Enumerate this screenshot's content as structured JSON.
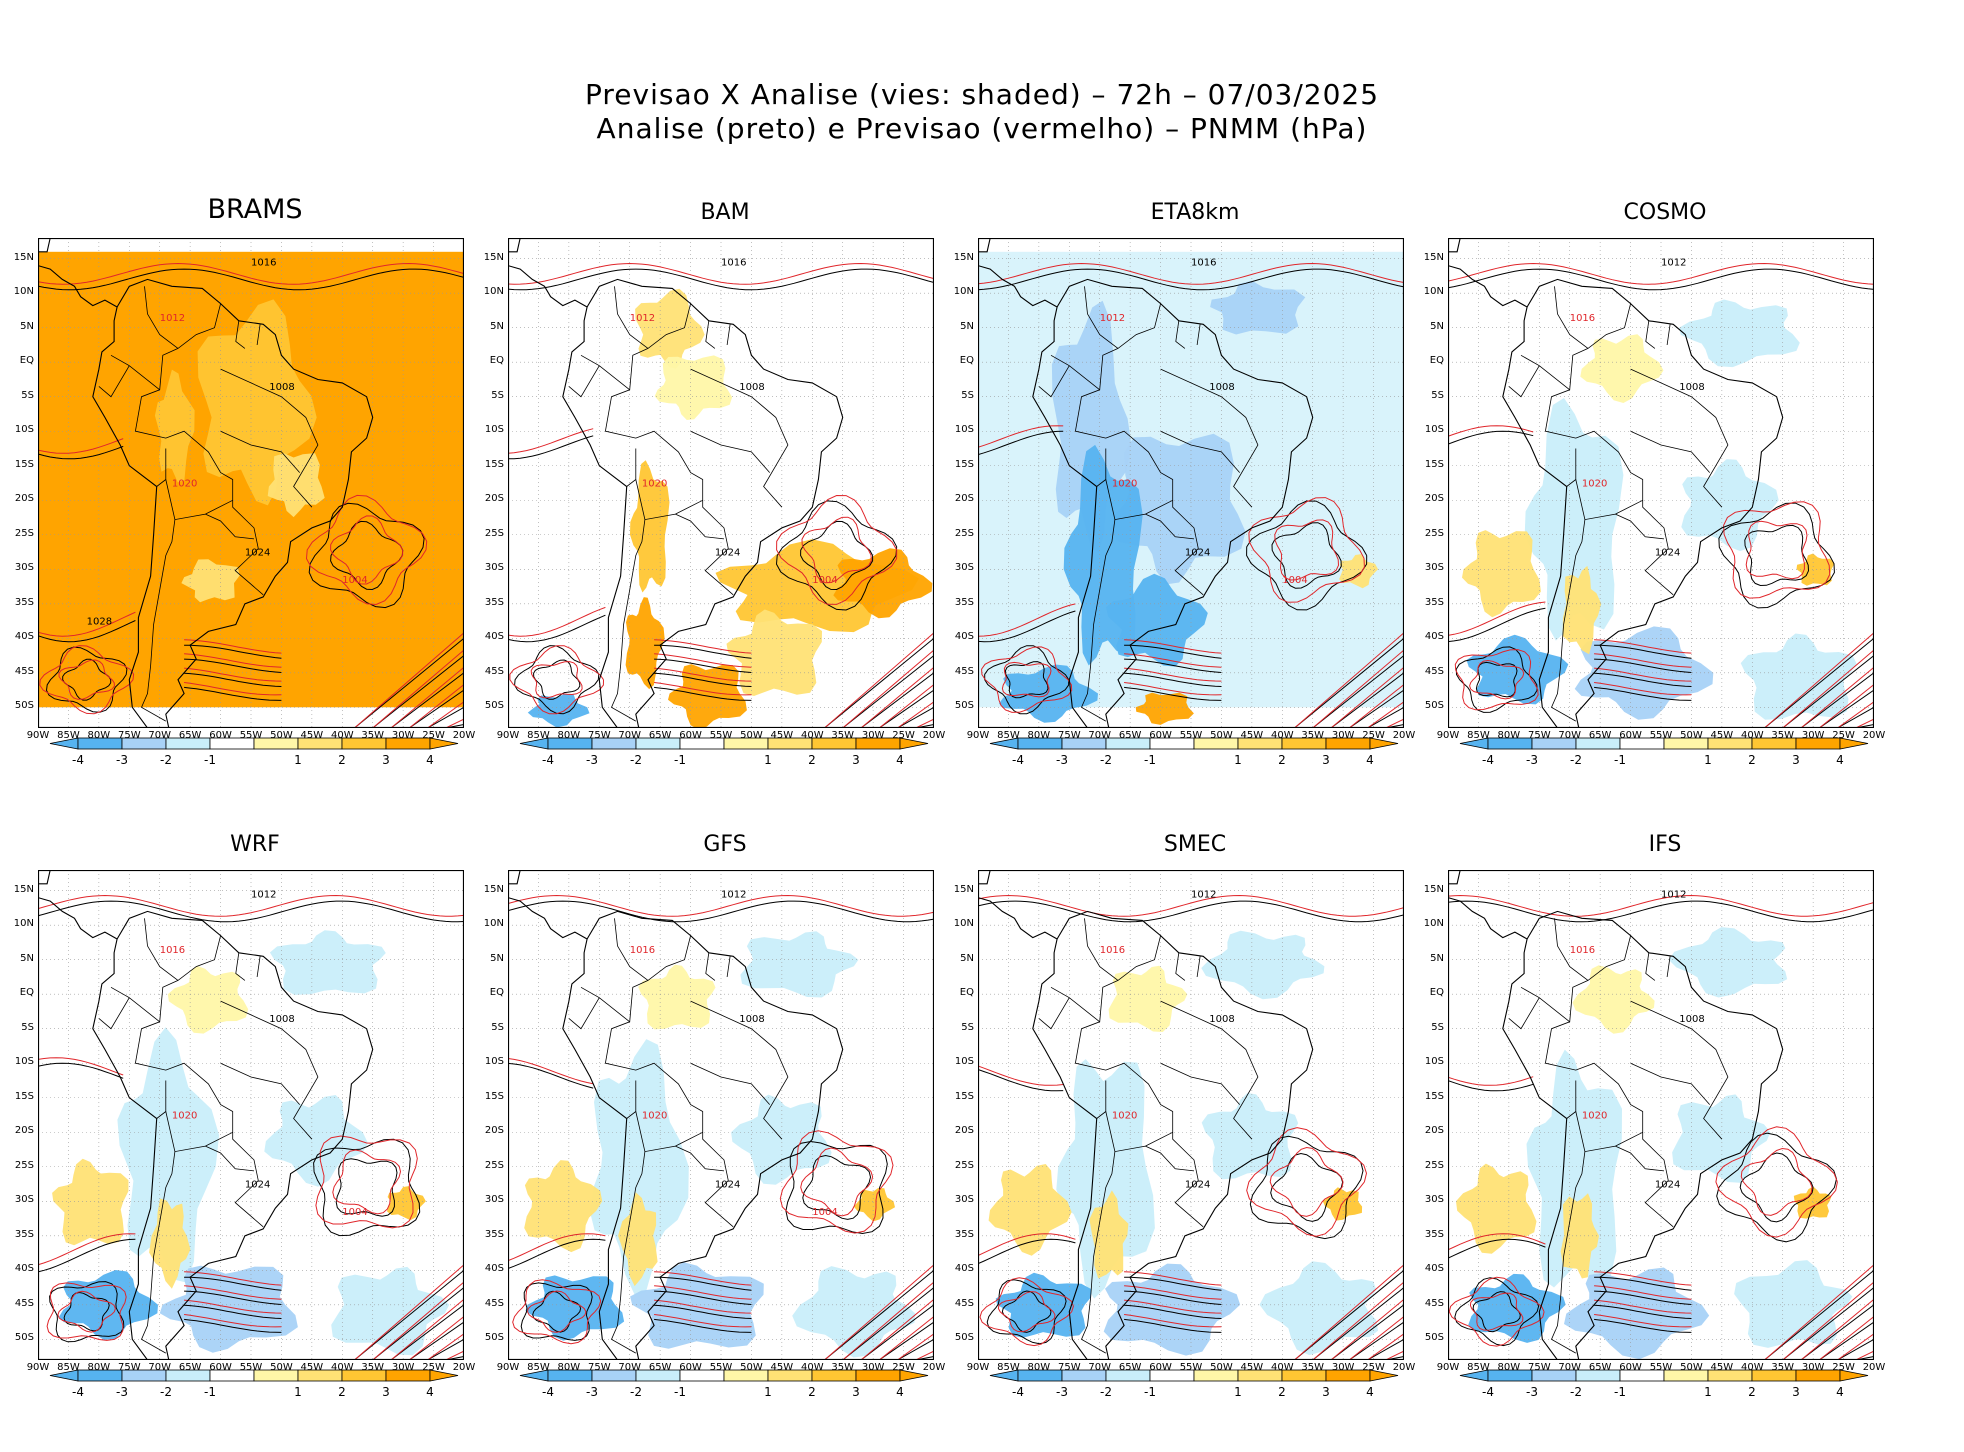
{
  "figure": {
    "title_line1": "Previsao X Analise (vies: shaded) – 72h – 07/03/2025",
    "title_line2": "Analise (preto) e Previsao (vermelho) – PNMM (hPa)"
  },
  "colors": {
    "neg4": "#56b3f0",
    "neg3": "#a8d2f7",
    "neg2": "#c9eefa",
    "neg1": "#ffffff",
    "pos1": "#fff7a8",
    "pos2": "#ffe275",
    "pos3": "#ffc633",
    "pos4": "#ffa400",
    "analysis_line": "#000000",
    "forecast_line": "#e0262b",
    "grid": "#999999"
  },
  "lat_labels": [
    "15N",
    "10N",
    "5N",
    "EQ",
    "5S",
    "10S",
    "15S",
    "20S",
    "25S",
    "30S",
    "35S",
    "40S",
    "45S",
    "50S"
  ],
  "lon_labels": [
    "90W",
    "85W",
    "80W",
    "75W",
    "70W",
    "65W",
    "60W",
    "55W",
    "50W",
    "45W",
    "40W",
    "35W",
    "30W",
    "25W",
    "20W"
  ],
  "colorbar_ticks": [
    "-4",
    "-3",
    "-2",
    "-1",
    "1",
    "2",
    "3",
    "4"
  ],
  "panels": [
    {
      "name": "BRAMS",
      "labels": [
        "1016",
        "1012",
        "1008",
        "1020",
        "1024",
        "1004",
        "1028"
      ],
      "bias": "pos4"
    },
    {
      "name": "BAM",
      "labels": [
        "1016",
        "1012",
        "1008",
        "1020",
        "1024",
        "1004"
      ],
      "bias": "pos"
    },
    {
      "name": "ETA8km",
      "labels": [
        "1016",
        "1012",
        "1008",
        "1020",
        "1024",
        "1004"
      ],
      "bias": "neg"
    },
    {
      "name": "COSMO",
      "labels": [
        "1012",
        "1016",
        "1008",
        "1020",
        "1024"
      ],
      "bias": "mixed"
    },
    {
      "name": "WRF",
      "labels": [
        "1012",
        "1016",
        "1008",
        "1020",
        "1024",
        "1004"
      ],
      "bias": "mixed"
    },
    {
      "name": "GFS",
      "labels": [
        "1012",
        "1016",
        "1008",
        "1020",
        "1024",
        "1004"
      ],
      "bias": "mixed"
    },
    {
      "name": "SMEC",
      "labels": [
        "1012",
        "1016",
        "1008",
        "1020",
        "1024"
      ],
      "bias": "mixed"
    },
    {
      "name": "IFS",
      "labels": [
        "1012",
        "1016",
        "1008",
        "1020",
        "1024"
      ],
      "bias": "mixed"
    }
  ]
}
